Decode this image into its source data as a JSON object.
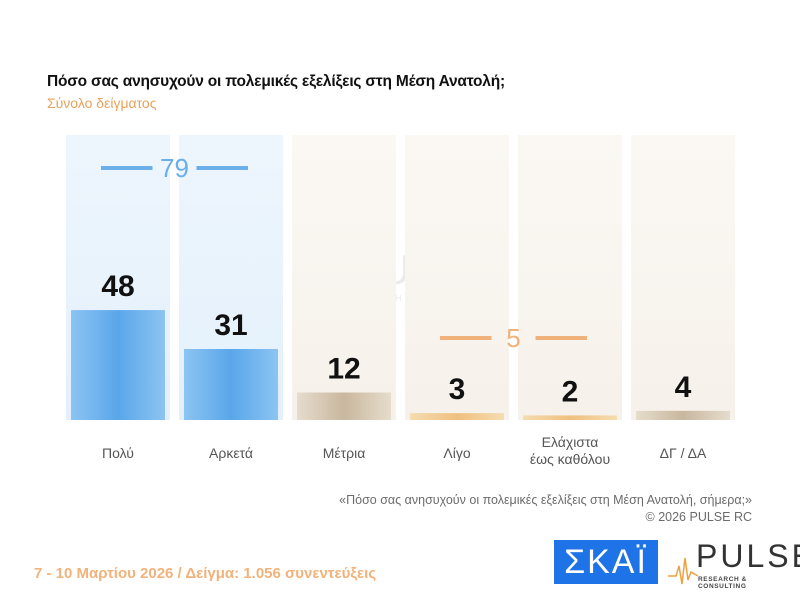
{
  "title": "Πόσο σας ανησυχούν οι πολεμικές εξελίξεις στη Μέση Ανατολή;",
  "subtitle": "Σύνολο δείγματος",
  "note_question": "«Πόσο σας ανησυχούν οι πολεμικές εξελίξεις στη Μέση Ανατολή, σήμερα;»",
  "note_copyright": "©  2026  PULSE RC",
  "footer": "7 - 10  Μαρτίου 2026  /  Δείγμα:  1.056 συνεντεύξεις",
  "logos": {
    "skai": "ΣΚΑΪ",
    "pulse": "PULSE",
    "pulse_sub": "RESEARCH & CONSULTING"
  },
  "chart_data": {
    "type": "bar",
    "categories": [
      "Πολύ",
      "Αρκετά",
      "Μέτρια",
      "Λίγο",
      "Ελάχιστα\nέως καθόλου",
      "ΔΓ / ΔΑ"
    ],
    "values": [
      48,
      31,
      12,
      3,
      2,
      4
    ],
    "groups": [
      {
        "label": "79",
        "from": 0,
        "to": 1,
        "color": "#6aaeea"
      },
      {
        "label": "5",
        "from": 3,
        "to": 4,
        "color": "#f0b27a"
      }
    ],
    "colors": {
      "blue": "#6aaeea",
      "beige": "#d9c9b3",
      "orange": "#f0c88f"
    },
    "grid": false
  }
}
